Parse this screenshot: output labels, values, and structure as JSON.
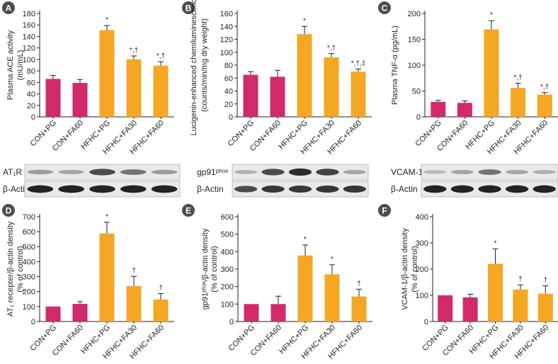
{
  "colors": {
    "control": "#d2296b",
    "treatment": "#f5a623",
    "panel_badge": "#4d4d4d",
    "badge_text": "#ffffff"
  },
  "categories": [
    "CON+PG",
    "CON+FA60",
    "HFHC+PG",
    "HFHC+FA30",
    "HFHC+FA60"
  ],
  "chart_data": [
    {
      "panel": "A",
      "type": "bar",
      "ylabel_lines": [
        "Plasma ACE activity",
        "(mU/mL)"
      ],
      "categories": [
        "CON+PG",
        "CON+FA60",
        "HFHC+PG",
        "HFHC+FA30",
        "HFHC+FA60"
      ],
      "values": [
        66,
        59,
        151,
        100,
        89
      ],
      "errors": [
        6,
        6,
        8,
        6,
        7
      ],
      "annotations": [
        "",
        "",
        "*",
        "*,†",
        "*,†"
      ],
      "ylim": [
        0,
        180
      ],
      "yticks": [
        "0",
        "20",
        "40",
        "60",
        "80",
        "100",
        "120",
        "140",
        "160",
        "180"
      ]
    },
    {
      "panel": "B",
      "type": "bar",
      "ylabel_lines": [
        "Lucigenin-enhanced chemiluminescence",
        "(counts/min/mg dry weight)"
      ],
      "categories": [
        "CON+PG",
        "CON+FA60",
        "HFHC+PG",
        "HFHC+FA30",
        "HFHC+FA60"
      ],
      "values": [
        65,
        62,
        128,
        92,
        70
      ],
      "errors": [
        5,
        10,
        12,
        6,
        4
      ],
      "annotations": [
        "",
        "",
        "*",
        "*,†",
        "*,†,‡"
      ],
      "ylim": [
        0,
        160
      ],
      "yticks": [
        "0",
        "20",
        "40",
        "60",
        "80",
        "100",
        "120",
        "140",
        "160"
      ]
    },
    {
      "panel": "C",
      "type": "bar",
      "ylabel_lines": [
        "Plasma TNF-α (pg/mL)"
      ],
      "categories": [
        "CON+PG",
        "CON+FA60",
        "HFHC+PG",
        "HFHC+FA30",
        "HFHC+FA60"
      ],
      "values": [
        29,
        27,
        169,
        56,
        43
      ],
      "errors": [
        3,
        4,
        17,
        9,
        4
      ],
      "annotations": [
        "",
        "",
        "*",
        "*,†",
        "*,†"
      ],
      "ylim": [
        0,
        200
      ],
      "yticks": [
        "0",
        "50",
        "100",
        "150",
        "200"
      ]
    },
    {
      "panel": "D",
      "type": "bar",
      "ylabel_lines": [
        "AT₁ recepter/β-actin density",
        "(% of control)"
      ],
      "categories": [
        "CON+PG",
        "CON+FA60",
        "HFHC+PG",
        "HFHC+FA30",
        "HFHC+FA60"
      ],
      "values": [
        100,
        118,
        588,
        237,
        147
      ],
      "errors": [
        0,
        15,
        75,
        65,
        40
      ],
      "annotations": [
        "",
        "",
        "*",
        "†",
        "†"
      ],
      "ylim": [
        0,
        700
      ],
      "yticks": [
        "0",
        "100",
        "200",
        "300",
        "400",
        "500",
        "600",
        "700"
      ]
    },
    {
      "panel": "E",
      "type": "bar",
      "ylabel_lines": [
        "gp91ᵖʰᵒˣ/β-actin density",
        "(% of control)"
      ],
      "categories": [
        "CON+PG",
        "CON+FA60",
        "HFHC+PG",
        "HFHC+FA30",
        "HFHC+FA60"
      ],
      "values": [
        100,
        100,
        378,
        270,
        143
      ],
      "errors": [
        0,
        45,
        60,
        55,
        42
      ],
      "annotations": [
        "",
        "",
        "*",
        "*",
        "†"
      ],
      "ylim": [
        0,
        600
      ],
      "yticks": [
        "0",
        "100",
        "200",
        "300",
        "400",
        "500",
        "600"
      ]
    },
    {
      "panel": "F",
      "type": "bar",
      "ylabel_lines": [
        "VCAM-1/β-actin density",
        "(% of control)"
      ],
      "categories": [
        "CON+PG",
        "CON+FA60",
        "HFHC+PG",
        "HFHC+FA30",
        "HFHC+FA60"
      ],
      "values": [
        100,
        92,
        220,
        122,
        106
      ],
      "errors": [
        0,
        12,
        57,
        18,
        30
      ],
      "annotations": [
        "",
        "",
        "*",
        "†",
        "†"
      ],
      "ylim": [
        0,
        400
      ],
      "yticks": [
        "0",
        "100",
        "200",
        "300",
        "400"
      ]
    }
  ],
  "blots": [
    {
      "target_label": "AT₁R",
      "actin_label": "β-Actin",
      "target_intensity": [
        0.35,
        0.3,
        0.75,
        0.55,
        0.35
      ],
      "actin_intensity": [
        0.95,
        0.95,
        0.95,
        0.95,
        0.95
      ]
    },
    {
      "target_label": "gp91ᵖʰᵒˣ",
      "actin_label": "β-Actin",
      "target_intensity": [
        0.25,
        0.75,
        0.9,
        0.8,
        0.3
      ],
      "actin_intensity": [
        0.75,
        0.85,
        0.85,
        0.85,
        0.85
      ]
    },
    {
      "target_label": "VCAM-1",
      "actin_label": "β-Actin",
      "target_intensity": [
        0.2,
        0.3,
        0.55,
        0.3,
        0.25
      ],
      "actin_intensity": [
        0.95,
        0.95,
        0.95,
        0.95,
        0.95
      ]
    }
  ]
}
